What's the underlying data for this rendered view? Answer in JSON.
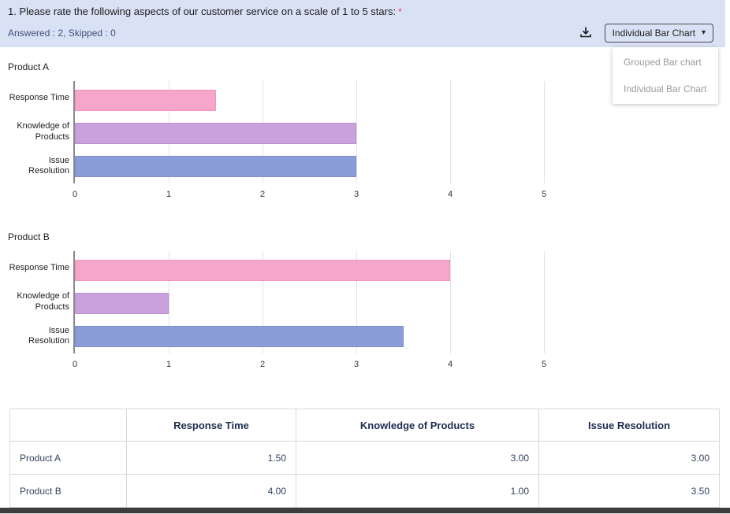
{
  "header": {
    "question": "1. Please rate the following aspects of our customer service on a scale of 1 to 5 stars:",
    "required_mark": "*",
    "answered": "Answered :  2, Skipped :  0",
    "chart_selector": {
      "selected": "Individual Bar Chart",
      "options": [
        "Grouped Bar chart",
        "Individual Bar Chart"
      ]
    }
  },
  "icons": {
    "chevron_down": "▾"
  },
  "chart_data": [
    {
      "type": "bar",
      "orientation": "horizontal",
      "title": "Product A",
      "categories": [
        "Response Time",
        "Knowledge of Products",
        "Issue Resolution"
      ],
      "values": [
        1.5,
        3.0,
        3.0
      ],
      "xlim": [
        0,
        5
      ],
      "xticks": [
        0,
        1,
        2,
        3,
        4,
        5
      ],
      "grid": true,
      "bar_colors": [
        {
          "fill": "#f7a6cb",
          "border": "#ee95bf"
        },
        {
          "fill": "#c9a1dd",
          "border": "#bd8fd3"
        },
        {
          "fill": "#8b9cdb",
          "border": "#7d8ecf"
        }
      ]
    },
    {
      "type": "bar",
      "orientation": "horizontal",
      "title": "Product B",
      "categories": [
        "Response Time",
        "Knowledge of Products",
        "Issue Resolution"
      ],
      "values": [
        4.0,
        1.0,
        3.5
      ],
      "xlim": [
        0,
        5
      ],
      "xticks": [
        0,
        1,
        2,
        3,
        4,
        5
      ],
      "grid": true,
      "bar_colors": [
        {
          "fill": "#f7a6cb",
          "border": "#ee95bf"
        },
        {
          "fill": "#c9a1dd",
          "border": "#bd8fd3"
        },
        {
          "fill": "#8b9cdb",
          "border": "#7d8ecf"
        }
      ]
    }
  ],
  "table": {
    "headers": [
      "",
      "Response Time",
      "Knowledge of Products",
      "Issue Resolution"
    ],
    "rows": [
      {
        "label": "Product A",
        "values": [
          "1.50",
          "3.00",
          "3.00"
        ]
      },
      {
        "label": "Product B",
        "values": [
          "4.00",
          "1.00",
          "3.50"
        ]
      }
    ]
  }
}
